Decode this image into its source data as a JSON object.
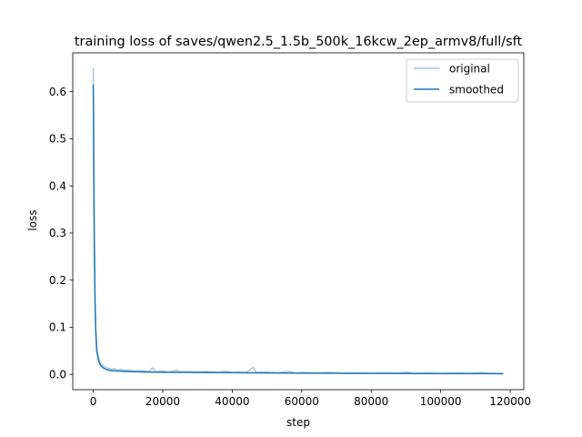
{
  "chart_data": {
    "type": "line",
    "title": "training loss of saves/qwen2.5_1.5b_500k_16kcw_2ep_armv8/full/sft",
    "xlabel": "step",
    "ylabel": "loss",
    "xlim": [
      -5900,
      123900
    ],
    "ylim": [
      -0.0325,
      0.6825
    ],
    "xticks": [
      0,
      20000,
      40000,
      60000,
      80000,
      100000,
      120000
    ],
    "xtick_labels": [
      "0",
      "20000",
      "40000",
      "60000",
      "80000",
      "100000",
      "120000"
    ],
    "yticks": [
      0.0,
      0.1,
      0.2,
      0.3,
      0.4,
      0.5,
      0.6
    ],
    "ytick_labels": [
      "0.0",
      "0.1",
      "0.2",
      "0.3",
      "0.4",
      "0.5",
      "0.6"
    ],
    "grid": false,
    "legend": {
      "position": "top-right"
    },
    "series": [
      {
        "name": "original",
        "color": "#a6c6de",
        "points": [
          [
            0,
            0.65
          ],
          [
            60,
            0.58
          ],
          [
            150,
            0.45
          ],
          [
            300,
            0.3
          ],
          [
            500,
            0.17
          ],
          [
            700,
            0.1
          ],
          [
            1000,
            0.055
          ],
          [
            1500,
            0.035
          ],
          [
            2000,
            0.025
          ],
          [
            3000,
            0.018
          ],
          [
            4000,
            0.014
          ],
          [
            5000,
            0.011
          ],
          [
            6000,
            0.012
          ],
          [
            7000,
            0.009
          ],
          [
            8000,
            0.011
          ],
          [
            9000,
            0.008
          ],
          [
            10000,
            0.009
          ],
          [
            12000,
            0.007
          ],
          [
            14000,
            0.008
          ],
          [
            16000,
            0.006
          ],
          [
            17000,
            0.014
          ],
          [
            18000,
            0.006
          ],
          [
            20000,
            0.007
          ],
          [
            22000,
            0.005
          ],
          [
            24000,
            0.009
          ],
          [
            25000,
            0.005
          ],
          [
            27000,
            0.006
          ],
          [
            30000,
            0.005
          ],
          [
            33000,
            0.006
          ],
          [
            36000,
            0.004
          ],
          [
            38000,
            0.007
          ],
          [
            40000,
            0.004
          ],
          [
            42000,
            0.005
          ],
          [
            44000,
            0.004
          ],
          [
            46000,
            0.015
          ],
          [
            47000,
            0.004
          ],
          [
            50000,
            0.005
          ],
          [
            53000,
            0.003
          ],
          [
            56000,
            0.007
          ],
          [
            58000,
            0.003
          ],
          [
            60000,
            0.004
          ],
          [
            64000,
            0.003
          ],
          [
            68000,
            0.004
          ],
          [
            72000,
            0.002
          ],
          [
            76000,
            0.003
          ],
          [
            80000,
            0.002
          ],
          [
            84000,
            0.003
          ],
          [
            88000,
            0.002
          ],
          [
            90000,
            0.005
          ],
          [
            92000,
            0.002
          ],
          [
            96000,
            0.003
          ],
          [
            100000,
            0.002
          ],
          [
            104000,
            0.003
          ],
          [
            108000,
            0.002
          ],
          [
            112000,
            0.004
          ],
          [
            114000,
            0.002
          ],
          [
            118000,
            0.002
          ]
        ]
      },
      {
        "name": "smoothed",
        "color": "#1f77b4",
        "points": [
          [
            0,
            0.615
          ],
          [
            60,
            0.57
          ],
          [
            150,
            0.43
          ],
          [
            300,
            0.28
          ],
          [
            500,
            0.16
          ],
          [
            700,
            0.095
          ],
          [
            1000,
            0.05
          ],
          [
            1500,
            0.03
          ],
          [
            2000,
            0.02
          ],
          [
            3000,
            0.013
          ],
          [
            4000,
            0.01
          ],
          [
            5000,
            0.008
          ],
          [
            7000,
            0.007
          ],
          [
            10000,
            0.006
          ],
          [
            15000,
            0.005
          ],
          [
            20000,
            0.0045
          ],
          [
            30000,
            0.004
          ],
          [
            40000,
            0.0035
          ],
          [
            50000,
            0.003
          ],
          [
            60000,
            0.0025
          ],
          [
            70000,
            0.0022
          ],
          [
            80000,
            0.002
          ],
          [
            90000,
            0.0018
          ],
          [
            100000,
            0.0016
          ],
          [
            110000,
            0.0015
          ],
          [
            118000,
            0.0014
          ]
        ]
      }
    ]
  }
}
